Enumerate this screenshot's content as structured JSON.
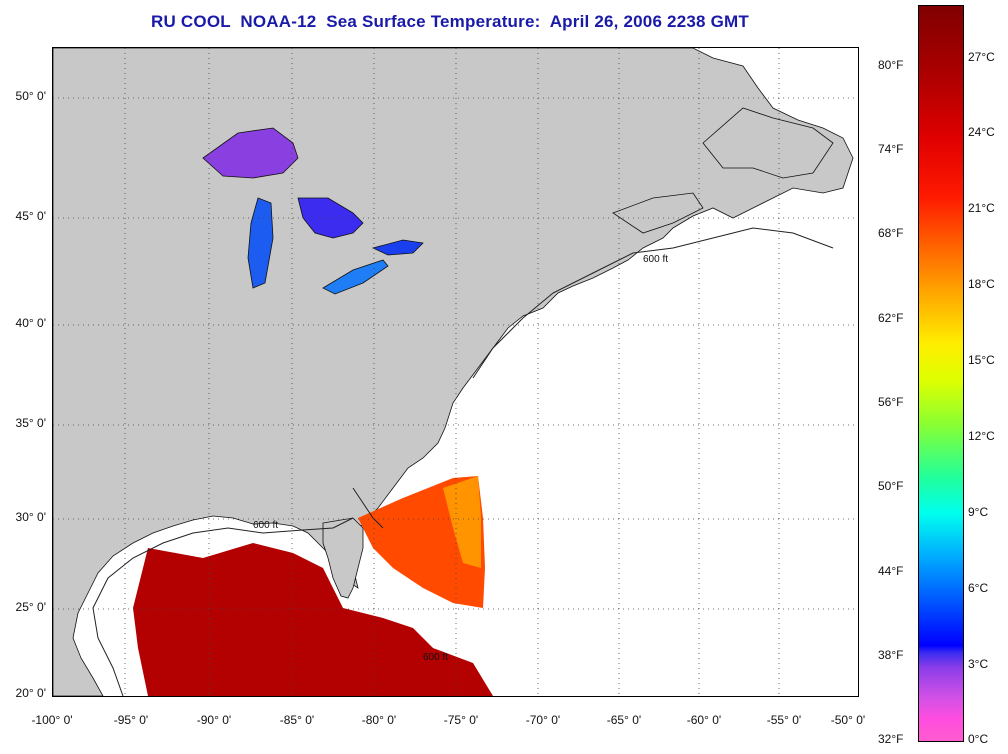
{
  "title": "RU COOL  NOAA-12  Sea Surface Temperature:  April 26, 2006 2238 GMT",
  "map": {
    "lon_range": [
      -100,
      -50
    ],
    "lat_range": [
      20,
      52.5
    ],
    "lat_labels": [
      "50° 0'",
      "45° 0'",
      "40° 0'",
      "35° 0'",
      "30° 0'",
      "25° 0'",
      "20° 0'"
    ],
    "lon_labels": [
      "-100° 0'",
      "-95° 0'",
      "-90° 0'",
      "-85° 0'",
      "-80° 0'",
      "-75° 0'",
      "-70° 0'",
      "-65° 0'",
      "-60° 0'",
      "-55° 0'",
      "-50° 0'"
    ],
    "isobath_label": "600 ft",
    "land_color": "#c8c8c8",
    "cloud_color": "#ffffff"
  },
  "colorbar": {
    "fahrenheit_labels": [
      "80°F",
      "74°F",
      "68°F",
      "62°F",
      "56°F",
      "50°F",
      "44°F",
      "38°F",
      "32°F"
    ],
    "celsius_labels": [
      "27°C",
      "24°C",
      "21°C",
      "18°C",
      "15°C",
      "12°C",
      "9°C",
      "6°C",
      "3°C",
      "0°C"
    ],
    "colors": [
      "#ff5ccf",
      "#8b3de8",
      "#0000ff",
      "#00aaff",
      "#00ffee",
      "#88ff33",
      "#ffee00",
      "#ffa600",
      "#ff1a00",
      "#800000"
    ]
  }
}
